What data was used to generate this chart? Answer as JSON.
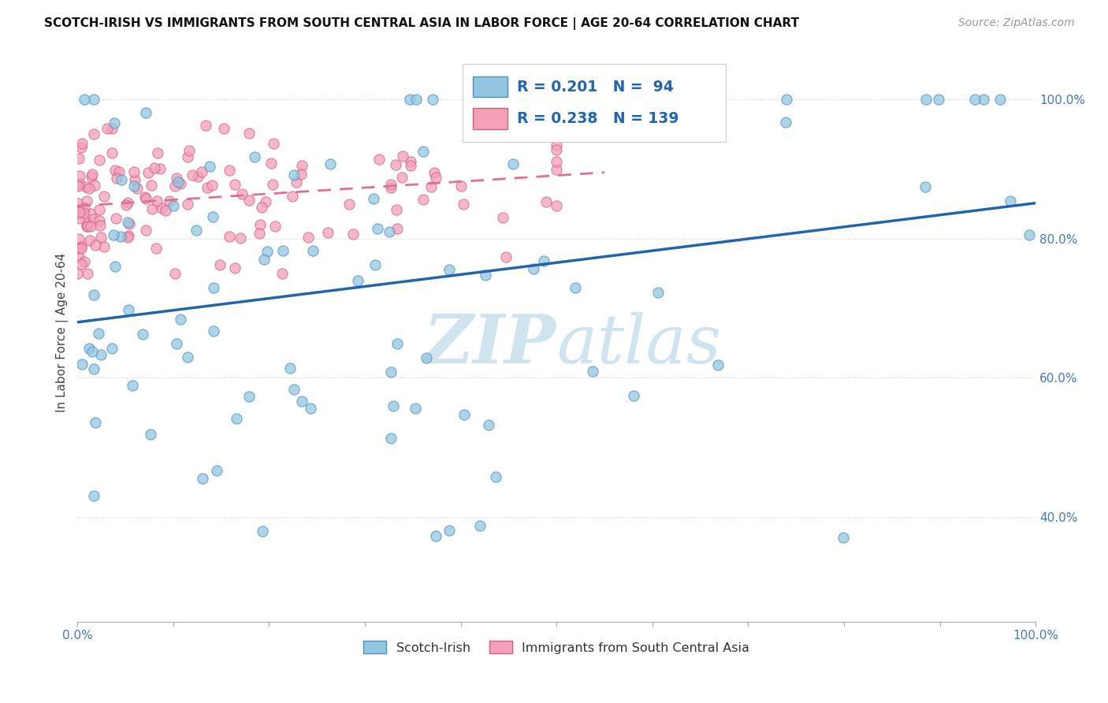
{
  "title": "SCOTCH-IRISH VS IMMIGRANTS FROM SOUTH CENTRAL ASIA IN LABOR FORCE | AGE 20-64 CORRELATION CHART",
  "source": "Source: ZipAtlas.com",
  "legend_blue_label": "Scotch-Irish",
  "legend_pink_label": "Immigrants from South Central Asia",
  "R_blue": 0.201,
  "N_blue": 94,
  "R_pink": 0.238,
  "N_pink": 139,
  "blue_color": "#93c6e0",
  "blue_edge_color": "#4a90c4",
  "pink_color": "#f4a0b8",
  "pink_edge_color": "#d06080",
  "blue_line_color": "#2166ac",
  "pink_line_color": "#e07090",
  "watermark_color": "#d0e4f0",
  "ylabel": "In Labor Force | Age 20-64"
}
